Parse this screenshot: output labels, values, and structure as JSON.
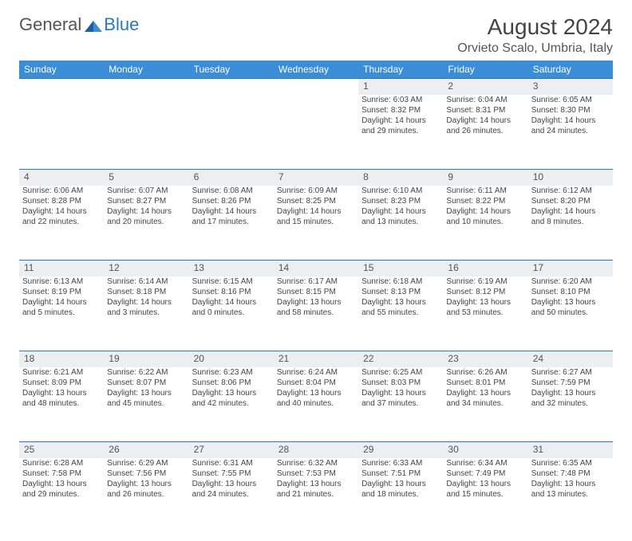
{
  "brand": {
    "part1": "General",
    "part2": "Blue"
  },
  "title": "August 2024",
  "location": "Orvieto Scalo, Umbria, Italy",
  "colors": {
    "header_bg": "#3a8dd6",
    "rule": "#2b77c0",
    "daynum_bg": "#eceef0",
    "text": "#444444"
  },
  "day_headers": [
    "Sunday",
    "Monday",
    "Tuesday",
    "Wednesday",
    "Thursday",
    "Friday",
    "Saturday"
  ],
  "weeks": [
    [
      null,
      null,
      null,
      null,
      {
        "n": "1",
        "sr": "Sunrise: 6:03 AM",
        "ss": "Sunset: 8:32 PM",
        "dl": "Daylight: 14 hours and 29 minutes."
      },
      {
        "n": "2",
        "sr": "Sunrise: 6:04 AM",
        "ss": "Sunset: 8:31 PM",
        "dl": "Daylight: 14 hours and 26 minutes."
      },
      {
        "n": "3",
        "sr": "Sunrise: 6:05 AM",
        "ss": "Sunset: 8:30 PM",
        "dl": "Daylight: 14 hours and 24 minutes."
      }
    ],
    [
      {
        "n": "4",
        "sr": "Sunrise: 6:06 AM",
        "ss": "Sunset: 8:28 PM",
        "dl": "Daylight: 14 hours and 22 minutes."
      },
      {
        "n": "5",
        "sr": "Sunrise: 6:07 AM",
        "ss": "Sunset: 8:27 PM",
        "dl": "Daylight: 14 hours and 20 minutes."
      },
      {
        "n": "6",
        "sr": "Sunrise: 6:08 AM",
        "ss": "Sunset: 8:26 PM",
        "dl": "Daylight: 14 hours and 17 minutes."
      },
      {
        "n": "7",
        "sr": "Sunrise: 6:09 AM",
        "ss": "Sunset: 8:25 PM",
        "dl": "Daylight: 14 hours and 15 minutes."
      },
      {
        "n": "8",
        "sr": "Sunrise: 6:10 AM",
        "ss": "Sunset: 8:23 PM",
        "dl": "Daylight: 14 hours and 13 minutes."
      },
      {
        "n": "9",
        "sr": "Sunrise: 6:11 AM",
        "ss": "Sunset: 8:22 PM",
        "dl": "Daylight: 14 hours and 10 minutes."
      },
      {
        "n": "10",
        "sr": "Sunrise: 6:12 AM",
        "ss": "Sunset: 8:20 PM",
        "dl": "Daylight: 14 hours and 8 minutes."
      }
    ],
    [
      {
        "n": "11",
        "sr": "Sunrise: 6:13 AM",
        "ss": "Sunset: 8:19 PM",
        "dl": "Daylight: 14 hours and 5 minutes."
      },
      {
        "n": "12",
        "sr": "Sunrise: 6:14 AM",
        "ss": "Sunset: 8:18 PM",
        "dl": "Daylight: 14 hours and 3 minutes."
      },
      {
        "n": "13",
        "sr": "Sunrise: 6:15 AM",
        "ss": "Sunset: 8:16 PM",
        "dl": "Daylight: 14 hours and 0 minutes."
      },
      {
        "n": "14",
        "sr": "Sunrise: 6:17 AM",
        "ss": "Sunset: 8:15 PM",
        "dl": "Daylight: 13 hours and 58 minutes."
      },
      {
        "n": "15",
        "sr": "Sunrise: 6:18 AM",
        "ss": "Sunset: 8:13 PM",
        "dl": "Daylight: 13 hours and 55 minutes."
      },
      {
        "n": "16",
        "sr": "Sunrise: 6:19 AM",
        "ss": "Sunset: 8:12 PM",
        "dl": "Daylight: 13 hours and 53 minutes."
      },
      {
        "n": "17",
        "sr": "Sunrise: 6:20 AM",
        "ss": "Sunset: 8:10 PM",
        "dl": "Daylight: 13 hours and 50 minutes."
      }
    ],
    [
      {
        "n": "18",
        "sr": "Sunrise: 6:21 AM",
        "ss": "Sunset: 8:09 PM",
        "dl": "Daylight: 13 hours and 48 minutes."
      },
      {
        "n": "19",
        "sr": "Sunrise: 6:22 AM",
        "ss": "Sunset: 8:07 PM",
        "dl": "Daylight: 13 hours and 45 minutes."
      },
      {
        "n": "20",
        "sr": "Sunrise: 6:23 AM",
        "ss": "Sunset: 8:06 PM",
        "dl": "Daylight: 13 hours and 42 minutes."
      },
      {
        "n": "21",
        "sr": "Sunrise: 6:24 AM",
        "ss": "Sunset: 8:04 PM",
        "dl": "Daylight: 13 hours and 40 minutes."
      },
      {
        "n": "22",
        "sr": "Sunrise: 6:25 AM",
        "ss": "Sunset: 8:03 PM",
        "dl": "Daylight: 13 hours and 37 minutes."
      },
      {
        "n": "23",
        "sr": "Sunrise: 6:26 AM",
        "ss": "Sunset: 8:01 PM",
        "dl": "Daylight: 13 hours and 34 minutes."
      },
      {
        "n": "24",
        "sr": "Sunrise: 6:27 AM",
        "ss": "Sunset: 7:59 PM",
        "dl": "Daylight: 13 hours and 32 minutes."
      }
    ],
    [
      {
        "n": "25",
        "sr": "Sunrise: 6:28 AM",
        "ss": "Sunset: 7:58 PM",
        "dl": "Daylight: 13 hours and 29 minutes."
      },
      {
        "n": "26",
        "sr": "Sunrise: 6:29 AM",
        "ss": "Sunset: 7:56 PM",
        "dl": "Daylight: 13 hours and 26 minutes."
      },
      {
        "n": "27",
        "sr": "Sunrise: 6:31 AM",
        "ss": "Sunset: 7:55 PM",
        "dl": "Daylight: 13 hours and 24 minutes."
      },
      {
        "n": "28",
        "sr": "Sunrise: 6:32 AM",
        "ss": "Sunset: 7:53 PM",
        "dl": "Daylight: 13 hours and 21 minutes."
      },
      {
        "n": "29",
        "sr": "Sunrise: 6:33 AM",
        "ss": "Sunset: 7:51 PM",
        "dl": "Daylight: 13 hours and 18 minutes."
      },
      {
        "n": "30",
        "sr": "Sunrise: 6:34 AM",
        "ss": "Sunset: 7:49 PM",
        "dl": "Daylight: 13 hours and 15 minutes."
      },
      {
        "n": "31",
        "sr": "Sunrise: 6:35 AM",
        "ss": "Sunset: 7:48 PM",
        "dl": "Daylight: 13 hours and 13 minutes."
      }
    ]
  ]
}
